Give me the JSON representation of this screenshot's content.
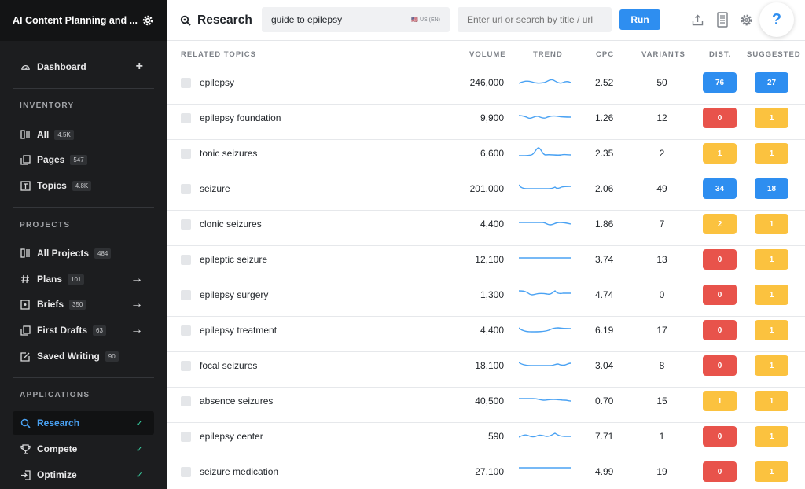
{
  "sidebar": {
    "app_title": "AI Content Planning and ...",
    "dashboard": {
      "label": "Dashboard",
      "add": "+"
    },
    "inventory": {
      "heading": "INVENTORY",
      "items": [
        {
          "label": "All",
          "count": "4.5K"
        },
        {
          "label": "Pages",
          "count": "547"
        },
        {
          "label": "Topics",
          "count": "4.8K"
        }
      ]
    },
    "projects": {
      "heading": "PROJECTS",
      "items": [
        {
          "label": "All Projects",
          "count": "484",
          "arrow": ""
        },
        {
          "label": "Plans",
          "count": "101",
          "arrow": "→"
        },
        {
          "label": "Briefs",
          "count": "350",
          "arrow": "→"
        },
        {
          "label": "First Drafts",
          "count": "63",
          "arrow": "→"
        },
        {
          "label": "Saved Writing",
          "count": "90",
          "arrow": ""
        }
      ]
    },
    "applications": {
      "heading": "APPLICATIONS",
      "items": [
        {
          "label": "Research",
          "check": "✓"
        },
        {
          "label": "Compete",
          "check": "✓"
        },
        {
          "label": "Optimize",
          "check": "✓"
        }
      ]
    }
  },
  "header": {
    "title": "Research",
    "query": "guide to epilepsy",
    "locale": "🇺🇸 US (EN)",
    "url_placeholder": "Enter url or search by title / url",
    "run_label": "Run",
    "help": "?"
  },
  "table": {
    "columns": {
      "topic": "RELATED TOPICS",
      "volume": "VOLUME",
      "trend": "TREND",
      "cpc": "CPC",
      "variants": "VARIANTS",
      "dist": "DIST.",
      "suggested": "SUGGESTED"
    },
    "rows": [
      {
        "topic": "epilepsy",
        "volume": "246,000",
        "cpc": "2.52",
        "variants": "50",
        "dist": "76",
        "suggested": "27"
      },
      {
        "topic": "epilepsy foundation",
        "volume": "9,900",
        "cpc": "1.26",
        "variants": "12",
        "dist": "0",
        "suggested": "1"
      },
      {
        "topic": "tonic seizures",
        "volume": "6,600",
        "cpc": "2.35",
        "variants": "2",
        "dist": "1",
        "suggested": "1"
      },
      {
        "topic": "seizure",
        "volume": "201,000",
        "cpc": "2.06",
        "variants": "49",
        "dist": "34",
        "suggested": "18"
      },
      {
        "topic": "clonic seizures",
        "volume": "4,400",
        "cpc": "1.86",
        "variants": "7",
        "dist": "2",
        "suggested": "1"
      },
      {
        "topic": "epileptic seizure",
        "volume": "12,100",
        "cpc": "3.74",
        "variants": "13",
        "dist": "0",
        "suggested": "1"
      },
      {
        "topic": "epilepsy surgery",
        "volume": "1,300",
        "cpc": "4.74",
        "variants": "0",
        "dist": "0",
        "suggested": "1"
      },
      {
        "topic": "epilepsy treatment",
        "volume": "4,400",
        "cpc": "6.19",
        "variants": "17",
        "dist": "0",
        "suggested": "1"
      },
      {
        "topic": "focal seizures",
        "volume": "18,100",
        "cpc": "3.04",
        "variants": "8",
        "dist": "0",
        "suggested": "1"
      },
      {
        "topic": "absence seizures",
        "volume": "40,500",
        "cpc": "0.70",
        "variants": "15",
        "dist": "1",
        "suggested": "1"
      },
      {
        "topic": "epilepsy center",
        "volume": "590",
        "cpc": "7.71",
        "variants": "1",
        "dist": "0",
        "suggested": "1"
      },
      {
        "topic": "seizure medication",
        "volume": "27,100",
        "cpc": "4.99",
        "variants": "19",
        "dist": "0",
        "suggested": "1"
      }
    ]
  },
  "colors": {
    "blue": "#2e8ef0",
    "red": "#e8534b",
    "yellow": "#fbc23f",
    "sidebar_bg": "#1c1d1f",
    "active_text": "#4aa2f3",
    "check": "#39d3a4"
  }
}
